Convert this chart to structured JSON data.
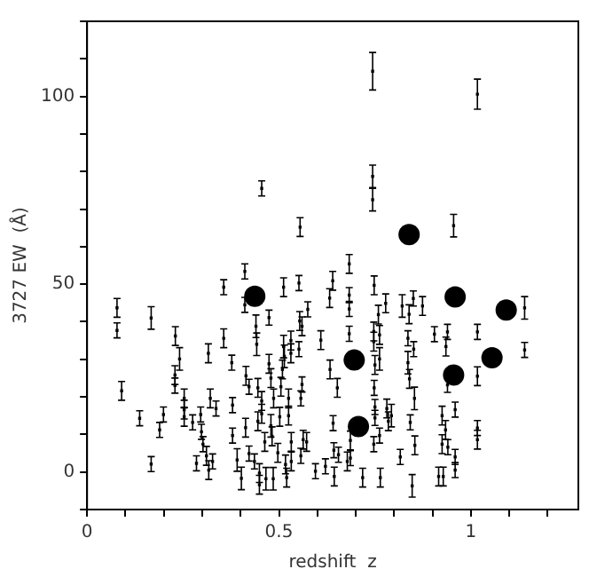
{
  "chart_data": {
    "type": "scatter",
    "xlabel": "redshift  z",
    "ylabel": "3727 EW  (Å)",
    "xlim": [
      0,
      1.28
    ],
    "ylim": [
      -10,
      120
    ],
    "xticks": [
      0,
      {
        "value": 0.1,
        "label": null
      },
      {
        "value": 0.2,
        "label": null
      },
      {
        "value": 0.3,
        "label": null
      },
      {
        "value": 0.4,
        "label": null
      },
      0.5,
      {
        "value": 0.6,
        "label": null
      },
      {
        "value": 0.7,
        "label": null
      },
      {
        "value": 0.8,
        "label": null
      },
      {
        "value": 0.9,
        "label": null
      },
      1,
      {
        "value": 1.1,
        "label": null
      },
      {
        "value": 1.2,
        "label": null
      }
    ],
    "yticks": [
      {
        "value": -10,
        "label": null
      },
      0,
      {
        "value": 10,
        "label": null
      },
      {
        "value": 20,
        "label": null
      },
      {
        "value": 30,
        "label": null
      },
      {
        "value": 40,
        "label": null
      },
      50,
      {
        "value": 60,
        "label": null
      },
      {
        "value": 70,
        "label": null
      },
      {
        "value": 80,
        "label": null
      },
      {
        "value": 90,
        "label": null
      },
      100,
      {
        "value": 110,
        "label": null
      },
      {
        "value": 120,
        "label": null
      }
    ],
    "series": [
      {
        "color": "#000000",
        "marker": "square",
        "x": [
          0.078,
          0.078,
          0.09,
          0.137,
          0.167,
          0.167,
          0.189,
          0.199,
          0.23,
          0.229,
          0.229,
          0.241,
          0.253,
          0.253,
          0.253,
          0.275,
          0.285,
          0.296,
          0.298,
          0.302,
          0.311,
          0.316,
          0.317,
          0.321,
          0.327,
          0.336,
          0.356,
          0.356,
          0.377,
          0.379,
          0.379,
          0.391,
          0.402,
          0.411,
          0.411,
          0.414,
          0.422,
          0.413,
          0.422,
          0.436,
          0.44,
          0.442,
          0.445,
          0.445,
          0.449,
          0.449,
          0.455,
          0.455,
          0.455,
          0.463,
          0.466,
          0.474,
          0.474,
          0.479,
          0.479,
          0.482,
          0.486,
          0.485,
          0.497,
          0.502,
          0.505,
          0.509,
          0.512,
          0.512,
          0.514,
          0.517,
          0.52,
          0.525,
          0.525,
          0.531,
          0.531,
          0.532,
          0.532,
          0.552,
          0.552,
          0.554,
          0.56,
          0.555,
          0.56,
          0.557,
          0.563,
          0.557,
          0.572,
          0.575,
          0.595,
          0.609,
          0.621,
          0.632,
          0.633,
          0.64,
          0.641,
          0.643,
          0.644,
          0.652,
          0.655,
          0.678,
          0.683,
          0.683,
          0.683,
          0.683,
          0.686,
          0.686,
          0.718,
          0.744,
          0.744,
          0.744,
          0.748,
          0.747,
          0.747,
          0.75,
          0.748,
          0.75,
          0.75,
          0.747,
          0.759,
          0.762,
          0.762,
          0.762,
          0.764,
          0.778,
          0.781,
          0.785,
          0.793,
          0.816,
          0.821,
          0.836,
          0.836,
          0.839,
          0.84,
          0.842,
          0.847,
          0.85,
          0.851,
          0.853,
          0.854,
          0.874,
          0.905,
          0.916,
          0.925,
          0.925,
          0.928,
          0.934,
          0.935,
          0.939,
          0.939,
          0.94,
          0.955,
          0.959,
          0.959,
          0.959,
          1.017,
          1.017,
          1.017,
          1.017,
          1.017,
          1.14,
          1.14
        ],
        "values": [
          43.7,
          37.7,
          21.6,
          14.3,
          41.0,
          2.1,
          11.2,
          15.3,
          36.2,
          25.8,
          23.0,
          30.1,
          19.6,
          16.6,
          14.7,
          13.2,
          2.3,
          15.3,
          10.7,
          7.4,
          4.3,
          31.6,
          0.5,
          19.6,
          2.8,
          16.9,
          49.2,
          35.6,
          29.1,
          17.8,
          9.7,
          3.2,
          -1.7,
          53.4,
          44.5,
          25.6,
          22.7,
          11.8,
          4.9,
          2.8,
          38.8,
          34.0,
          22.4,
          13.5,
          -0.3,
          -3.4,
          75.5,
          18.9,
          15.5,
          8.0,
          -1.8,
          41.1,
          28.8,
          25.0,
          12.3,
          9.5,
          19.6,
          -1.8,
          5.1,
          14.7,
          22.7,
          27.3,
          49.2,
          33.4,
          30.8,
          2.0,
          -1.5,
          19.6,
          15.0,
          31.6,
          35.0,
          8.0,
          2.8,
          50.3,
          32.7,
          40.2,
          38.8,
          65.2,
          23.3,
          19.6,
          8.6,
          4.3,
          8.0,
          43.3,
          0.2,
          35.1,
          1.5,
          46.3,
          27.3,
          50.9,
          13.0,
          5.8,
          -1.2,
          22.4,
          4.6,
          2.8,
          55.4,
          47.1,
          43.4,
          36.8,
          8.4,
          3.7,
          -1.5,
          106.7,
          78.7,
          72.5,
          49.7,
          37.4,
          34.7,
          28.5,
          22.4,
          17.3,
          14.4,
          7.4,
          41.9,
          36.5,
          30.1,
          9.7,
          -1.5,
          44.9,
          16.9,
          13.5,
          15.0,
          4.0,
          44.2,
          35.6,
          29.1,
          42.0,
          24.8,
          13.2,
          -3.7,
          46.2,
          32.7,
          19.6,
          7.1,
          44.2,
          36.7,
          -1.2,
          15.0,
          7.4,
          -1.2,
          11.2,
          33.4,
          37.3,
          23.2,
          6.6,
          65.6,
          16.6,
          4.0,
          0.5,
          100.6,
          37.3,
          25.5,
          11.7,
          8.6,
          43.7,
          32.5
        ],
        "errors": [
          2.5,
          2,
          2.5,
          2,
          3,
          2,
          2,
          2,
          2.5,
          2.5,
          2,
          3,
          2.5,
          2.5,
          2.5,
          2,
          2,
          2,
          2,
          2,
          2.5,
          2.5,
          2.5,
          2.5,
          2,
          2,
          2,
          2.5,
          2,
          2,
          2,
          3,
          3,
          2,
          2,
          2.5,
          2,
          2.5,
          2,
          2,
          3,
          3,
          2.5,
          2.5,
          2.5,
          2.5,
          2,
          2.5,
          2.5,
          2.5,
          3,
          2,
          2.5,
          2.5,
          3,
          2.5,
          2.5,
          3,
          2.5,
          2.5,
          2.5,
          2.5,
          2.5,
          3,
          3,
          2.5,
          2.5,
          2.5,
          2.5,
          2.5,
          2.5,
          2.5,
          2.5,
          2,
          2,
          2.5,
          2.5,
          2.5,
          2,
          2,
          2.5,
          2,
          2.5,
          2,
          2,
          2.5,
          2,
          2.5,
          2.5,
          2.5,
          2,
          2,
          2.5,
          2.5,
          2,
          2.5,
          2.5,
          2,
          2,
          2,
          2.5,
          2,
          2.5,
          5,
          3,
          3,
          2.5,
          2.5,
          2.5,
          2.5,
          2,
          2,
          2,
          2,
          2.5,
          2.5,
          3,
          2,
          2.5,
          2.5,
          2.5,
          2.5,
          3,
          2,
          3,
          2,
          3,
          2.5,
          2.5,
          2,
          3,
          2,
          2,
          3,
          2.5,
          2.5,
          2,
          2.5,
          2.5,
          2.5,
          2.5,
          2.5,
          2.5,
          2,
          2,
          2,
          3,
          2,
          2,
          2,
          4,
          2,
          2.5,
          2,
          2.5,
          3,
          2
        ]
      },
      {
        "color": "#000000",
        "marker": "circle",
        "x": [
          0.437,
          0.696,
          0.707,
          0.839,
          0.959,
          0.955,
          1.055,
          1.092
        ],
        "values": [
          46.8,
          29.8,
          12.1,
          63.2,
          46.6,
          25.8,
          30.4,
          43.1
        ]
      }
    ]
  }
}
